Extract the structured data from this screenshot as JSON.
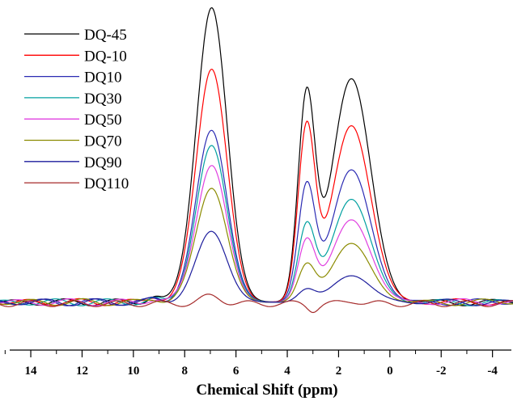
{
  "chart_data": {
    "type": "line",
    "xlabel": "Chemical Shift (ppm)",
    "ylabel": "",
    "xlim": [
      15.2,
      -4.8
    ],
    "x_reversed": true,
    "ylim": [
      -0.05,
      1.0
    ],
    "x_ticks": [
      14,
      12,
      10,
      8,
      6,
      4,
      2,
      0,
      -2,
      -4
    ],
    "x_tick_labels": [
      "14",
      "12",
      "10",
      "8",
      "6",
      "4",
      "2",
      "0",
      "-2",
      "-4"
    ],
    "grid": false,
    "legend_position": "top-left",
    "series": [
      {
        "name": "DQ-45",
        "color": "#000000",
        "a1": 1.0,
        "a2": 0.68,
        "a3": 0.76,
        "base": 0.0
      },
      {
        "name": "DQ-10",
        "color": "#ff0000",
        "a1": 0.795,
        "a2": 0.575,
        "a3": 0.6,
        "base": 0.0
      },
      {
        "name": "DQ10",
        "color": "#2b2bb3",
        "a1": 0.585,
        "a2": 0.38,
        "a3": 0.45,
        "base": 0.0
      },
      {
        "name": "DQ30",
        "color": "#00a0a0",
        "a1": 0.53,
        "a2": 0.25,
        "a3": 0.35,
        "base": 0.0
      },
      {
        "name": "DQ50",
        "color": "#e040e0",
        "a1": 0.465,
        "a2": 0.2,
        "a3": 0.28,
        "base": 0.0
      },
      {
        "name": "DQ70",
        "color": "#8b8b00",
        "a1": 0.39,
        "a2": 0.12,
        "a3": 0.2,
        "base": 0.0
      },
      {
        "name": "DQ90",
        "color": "#1c1c9c",
        "a1": 0.24,
        "a2": 0.04,
        "a3": 0.09,
        "base": 0.0
      },
      {
        "name": "DQ110",
        "color": "#a52a2a",
        "a1": 0.025,
        "a2": -0.02,
        "a3": 0.01,
        "base": -0.005
      }
    ]
  }
}
